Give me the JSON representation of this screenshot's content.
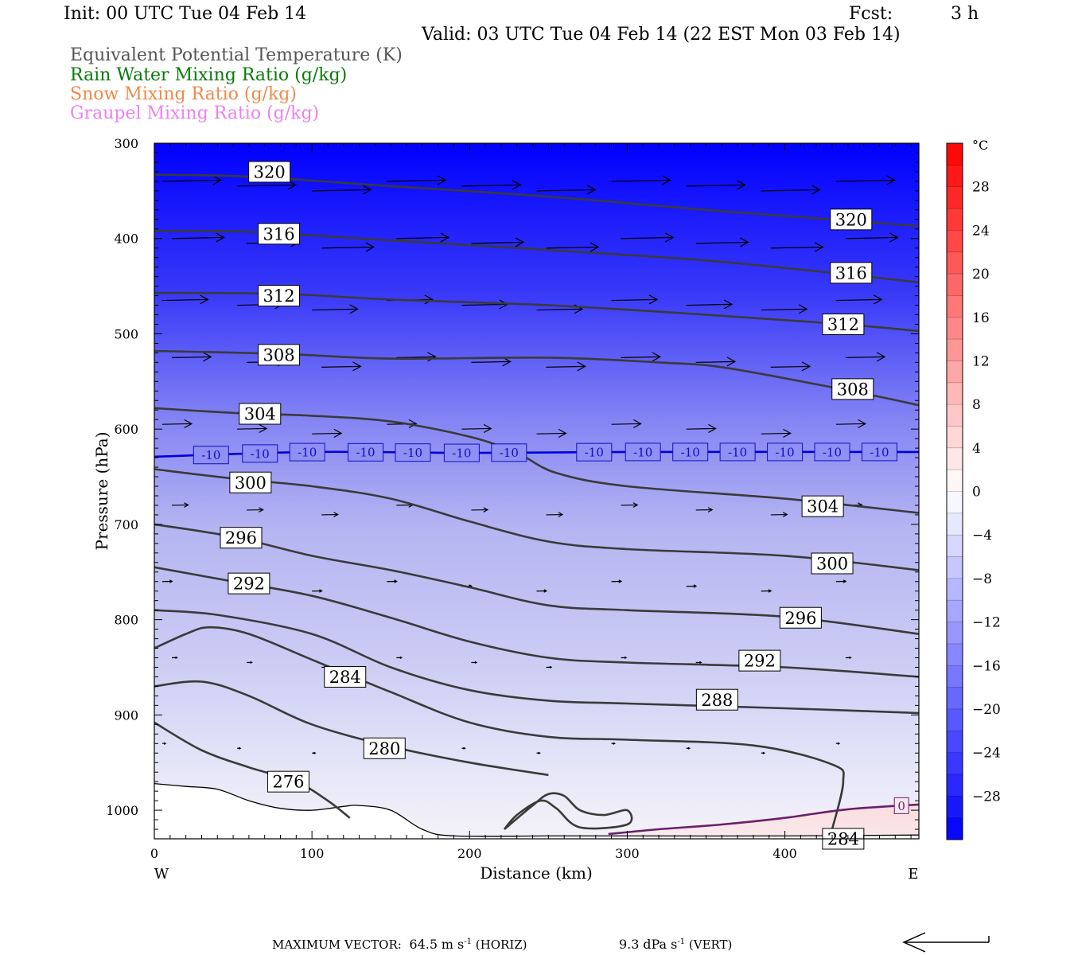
{
  "header": {
    "init": "Init: 00 UTC Tue 04 Feb 14",
    "fcst_label": "Fcst:",
    "fcst_value": "3 h",
    "valid": "Valid: 03 UTC Tue 04 Feb 14 (22 EST Mon 03 Feb 14)"
  },
  "legend": [
    {
      "text": "Equivalent Potential Temperature (K)",
      "color": "#555555"
    },
    {
      "text": "Rain Water Mixing Ratio (g/kg)",
      "color": "#0a7a0a"
    },
    {
      "text": "Snow Mixing Ratio (g/kg)",
      "color": "#f08a4b"
    },
    {
      "text": "Graupel Mixing Ratio (g/kg)",
      "color": "#ee82ee"
    }
  ],
  "footer": {
    "max_vector_label": "MAXIMUM VECTOR:",
    "horiz_value": "64.5",
    "horiz_unit": "m s",
    "horiz_exp": "-1",
    "horiz_tag": "(HORIZ)",
    "vert_value": "9.3",
    "vert_unit": "dPa s",
    "vert_exp": "-1",
    "vert_tag": "(VERT)"
  },
  "chart_data": {
    "type": "cross-section",
    "xlabel": "Distance (km)",
    "ylabel": "Pressure (hPa)",
    "xlim": [
      0,
      485
    ],
    "ylim": [
      1030,
      300
    ],
    "x_ticks": [
      0,
      100,
      200,
      300,
      400
    ],
    "y_ticks": [
      300,
      400,
      500,
      600,
      700,
      800,
      900,
      1000
    ],
    "x_end_labels": {
      "left": "W",
      "right": "E"
    },
    "colorbar": {
      "unit": "°C",
      "range": [
        -32,
        32
      ],
      "tick_labels": [
        "28",
        "24",
        "20",
        "16",
        "12",
        "8",
        "4",
        "0",
        "−4",
        "−8",
        "−12",
        "−16",
        "−20",
        "−24",
        "−28"
      ],
      "tick_values": [
        28,
        24,
        20,
        16,
        12,
        8,
        4,
        0,
        -4,
        -8,
        -12,
        -16,
        -20,
        -24,
        -28
      ],
      "cold_color": "#0000ff",
      "zero_color": "#ffffff",
      "warm_color": "#ff0000"
    },
    "theta_e_contours": [
      {
        "value": 320,
        "points": [
          [
            0,
            333
          ],
          [
            60,
            335
          ],
          [
            150,
            345
          ],
          [
            250,
            356
          ],
          [
            350,
            370
          ],
          [
            430,
            380
          ],
          [
            485,
            387
          ]
        ],
        "labels": [
          [
            73,
            330
          ],
          [
            442,
            380
          ]
        ]
      },
      {
        "value": 316,
        "points": [
          [
            0,
            392
          ],
          [
            60,
            393
          ],
          [
            150,
            402
          ],
          [
            250,
            412
          ],
          [
            350,
            423
          ],
          [
            430,
            436
          ],
          [
            485,
            446
          ]
        ],
        "labels": [
          [
            79,
            395
          ],
          [
            442,
            436
          ]
        ]
      },
      {
        "value": 312,
        "points": [
          [
            0,
            457
          ],
          [
            80,
            458
          ],
          [
            150,
            464
          ],
          [
            250,
            470
          ],
          [
            350,
            480
          ],
          [
            430,
            489
          ],
          [
            485,
            497
          ]
        ],
        "labels": [
          [
            79,
            460
          ],
          [
            437,
            490
          ]
        ]
      },
      {
        "value": 308,
        "points": [
          [
            0,
            518
          ],
          [
            80,
            521
          ],
          [
            150,
            526
          ],
          [
            250,
            525
          ],
          [
            320,
            530
          ],
          [
            360,
            535
          ],
          [
            420,
            553
          ],
          [
            460,
            566
          ],
          [
            485,
            575
          ]
        ],
        "labels": [
          [
            79,
            522
          ],
          [
            443,
            558
          ]
        ]
      },
      {
        "value": 304,
        "points": [
          [
            0,
            578
          ],
          [
            50,
            583
          ],
          [
            100,
            586
          ],
          [
            150,
            592
          ],
          [
            200,
            608
          ],
          [
            230,
            625
          ],
          [
            255,
            646
          ],
          [
            300,
            660
          ],
          [
            400,
            673
          ],
          [
            485,
            688
          ]
        ],
        "labels": [
          [
            67,
            584
          ],
          [
            424,
            681
          ]
        ]
      },
      {
        "value": 300,
        "points": [
          [
            0,
            642
          ],
          [
            50,
            652
          ],
          [
            100,
            660
          ],
          [
            150,
            673
          ],
          [
            200,
            697
          ],
          [
            250,
            718
          ],
          [
            300,
            726
          ],
          [
            400,
            733
          ],
          [
            485,
            748
          ]
        ],
        "labels": [
          [
            61,
            656
          ],
          [
            430,
            741
          ]
        ]
      },
      {
        "value": 296,
        "points": [
          [
            0,
            700
          ],
          [
            50,
            713
          ],
          [
            100,
            733
          ],
          [
            150,
            748
          ],
          [
            200,
            766
          ],
          [
            250,
            785
          ],
          [
            300,
            790
          ],
          [
            400,
            797
          ],
          [
            485,
            815
          ]
        ],
        "labels": [
          [
            55,
            714
          ],
          [
            410,
            798
          ]
        ]
      },
      {
        "value": 292,
        "points": [
          [
            0,
            745
          ],
          [
            50,
            760
          ],
          [
            100,
            775
          ],
          [
            150,
            798
          ],
          [
            200,
            823
          ],
          [
            250,
            840
          ],
          [
            300,
            845
          ],
          [
            400,
            850
          ],
          [
            485,
            860
          ]
        ],
        "labels": [
          [
            60,
            762
          ],
          [
            384,
            843
          ]
        ]
      },
      {
        "value": 288,
        "points": [
          [
            0,
            790
          ],
          [
            40,
            795
          ],
          [
            100,
            815
          ],
          [
            150,
            850
          ],
          [
            200,
            874
          ],
          [
            250,
            885
          ],
          [
            300,
            888
          ],
          [
            400,
            893
          ],
          [
            485,
            898
          ]
        ],
        "labels": [
          [
            357,
            884
          ]
        ]
      },
      {
        "value": 284,
        "points": [
          [
            0,
            830
          ],
          [
            20,
            815
          ],
          [
            35,
            808
          ],
          [
            60,
            815
          ],
          [
            100,
            842
          ],
          [
            150,
            876
          ],
          [
            200,
            908
          ],
          [
            250,
            923
          ],
          [
            300,
            926
          ],
          [
            380,
            932
          ],
          [
            430,
            952
          ],
          [
            437,
            970
          ],
          [
            430,
            1020
          ]
        ],
        "labels": [
          [
            121,
            860
          ],
          [
            437,
            1030
          ]
        ]
      },
      {
        "value": 280,
        "points": [
          [
            0,
            870
          ],
          [
            30,
            865
          ],
          [
            60,
            880
          ],
          [
            100,
            910
          ],
          [
            150,
            933
          ],
          [
            200,
            950
          ],
          [
            250,
            963
          ]
        ],
        "labels": [
          [
            146,
            935
          ]
        ]
      },
      {
        "value": 276,
        "points": [
          [
            0,
            908
          ],
          [
            30,
            937
          ],
          [
            60,
            955
          ],
          [
            90,
            970
          ],
          [
            110,
            990
          ],
          [
            124,
            1008
          ]
        ],
        "labels": [
          [
            85,
            970
          ]
        ]
      }
    ],
    "theta_e_small_loop": {
      "value": 280,
      "points": [
        [
          222,
          1020
        ],
        [
          240,
          995
        ],
        [
          250,
          983
        ],
        [
          260,
          985
        ],
        [
          270,
          1000
        ],
        [
          285,
          1005
        ],
        [
          300,
          1000
        ],
        [
          300,
          1015
        ],
        [
          270,
          1018
        ],
        [
          255,
          998
        ],
        [
          245,
          990
        ],
        [
          230,
          1005
        ],
        [
          222,
          1020
        ]
      ]
    },
    "isotherm_minus10": {
      "value": -10,
      "color": "#0000e0",
      "points": [
        [
          0,
          629
        ],
        [
          100,
          624
        ],
        [
          200,
          625
        ],
        [
          300,
          624
        ],
        [
          485,
          624
        ]
      ],
      "label_x": [
        36,
        67,
        97,
        134,
        164,
        195,
        225,
        279,
        310,
        340,
        370,
        400,
        430,
        460
      ]
    },
    "isotherm_zero": {
      "value": 0,
      "color": "#6b1f6b",
      "points": [
        [
          288,
          1025
        ],
        [
          320,
          1020
        ],
        [
          360,
          1015
        ],
        [
          400,
          1008
        ],
        [
          440,
          999
        ],
        [
          485,
          994
        ]
      ],
      "label_x": [
        474
      ]
    },
    "temperature_field_note": "shaded by temperature; approx -32 °C at 300 hPa, -10 °C near 625 hPa, near 0 °C at the surface in the east",
    "wind_vectors": [
      {
        "row_p": 340,
        "count": 10,
        "length_frac": 0.9
      },
      {
        "row_p": 400,
        "count": 10,
        "length_frac": 0.8
      },
      {
        "row_p": 465,
        "count": 10,
        "length_frac": 0.7
      },
      {
        "row_p": 525,
        "count": 10,
        "length_frac": 0.6
      },
      {
        "row_p": 595,
        "count": 10,
        "length_frac": 0.45
      },
      {
        "row_p": 680,
        "count": 10,
        "length_frac": 0.25
      },
      {
        "row_p": 760,
        "count": 10,
        "length_frac": 0.15
      },
      {
        "row_p": 840,
        "count": 10,
        "length_frac": 0.08
      },
      {
        "row_p": 930,
        "count": 10,
        "length_frac": 0.05
      }
    ],
    "terrain": {
      "points": [
        [
          0,
          972
        ],
        [
          20,
          975
        ],
        [
          40,
          978
        ],
        [
          60,
          990
        ],
        [
          80,
          998
        ],
        [
          100,
          1000
        ],
        [
          120,
          996
        ],
        [
          130,
          995
        ],
        [
          150,
          1000
        ],
        [
          170,
          1020
        ],
        [
          190,
          1027
        ],
        [
          250,
          1027
        ],
        [
          300,
          1027
        ],
        [
          400,
          1027
        ],
        [
          485,
          1026
        ]
      ]
    }
  }
}
